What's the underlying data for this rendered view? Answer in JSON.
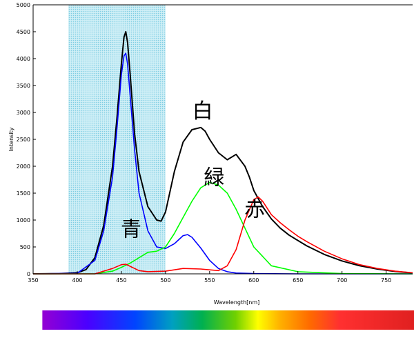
{
  "chart_data": {
    "type": "line",
    "title": "",
    "xlabel": "Wavelength[nm]",
    "ylabel": "Intensity",
    "xlim": [
      350,
      780
    ],
    "ylim": [
      0,
      5000
    ],
    "x_ticks": [
      350,
      400,
      450,
      500,
      550,
      600,
      650,
      700,
      750
    ],
    "y_ticks": [
      0,
      500,
      1000,
      1500,
      2000,
      2500,
      3000,
      3500,
      4000,
      4500,
      5000
    ],
    "grid": false,
    "legend": "none",
    "highlight_band": {
      "x": [
        390,
        500
      ],
      "color": "#aee3ef"
    },
    "spectrum_bar": {
      "x": [
        380,
        780
      ]
    },
    "series": [
      {
        "name": "白",
        "color": "#000000",
        "x": [
          350,
          380,
          400,
          410,
          420,
          430,
          440,
          445,
          450,
          453,
          455,
          457,
          460,
          465,
          470,
          480,
          490,
          495,
          500,
          510,
          520,
          530,
          540,
          545,
          550,
          560,
          570,
          580,
          590,
          595,
          600,
          610,
          620,
          630,
          640,
          650,
          660,
          680,
          700,
          720,
          740,
          760,
          780
        ],
        "y": [
          0,
          5,
          20,
          80,
          300,
          900,
          2000,
          2900,
          3900,
          4400,
          4500,
          4300,
          3700,
          2600,
          1900,
          1250,
          1000,
          980,
          1150,
          1900,
          2450,
          2680,
          2720,
          2650,
          2500,
          2250,
          2120,
          2220,
          2000,
          1800,
          1550,
          1250,
          1020,
          850,
          720,
          620,
          520,
          360,
          240,
          150,
          90,
          45,
          15
        ]
      },
      {
        "name": "青",
        "color": "#0000ff",
        "x": [
          350,
          400,
          420,
          430,
          440,
          445,
          450,
          453,
          455,
          457,
          460,
          465,
          470,
          480,
          490,
          500,
          510,
          520,
          525,
          530,
          540,
          550,
          560,
          570,
          580,
          600,
          650,
          700,
          780
        ],
        "y": [
          0,
          10,
          250,
          800,
          1800,
          2700,
          3700,
          4050,
          4100,
          3900,
          3300,
          2300,
          1500,
          800,
          500,
          470,
          560,
          710,
          730,
          680,
          480,
          250,
          100,
          40,
          15,
          5,
          0,
          0,
          0
        ]
      },
      {
        "name": "緑",
        "color": "#00ff00",
        "x": [
          350,
          420,
          440,
          450,
          460,
          470,
          480,
          490,
          500,
          510,
          520,
          530,
          540,
          550,
          560,
          570,
          580,
          590,
          600,
          620,
          650,
          700,
          780
        ],
        "y": [
          0,
          0,
          50,
          120,
          200,
          300,
          400,
          420,
          500,
          750,
          1050,
          1350,
          1600,
          1700,
          1650,
          1500,
          1200,
          850,
          500,
          150,
          40,
          5,
          0
        ]
      },
      {
        "name": "赤",
        "color": "#ff0000",
        "x": [
          350,
          420,
          440,
          450,
          455,
          460,
          470,
          480,
          500,
          520,
          540,
          560,
          570,
          580,
          590,
          600,
          605,
          610,
          620,
          630,
          640,
          650,
          660,
          680,
          700,
          720,
          740,
          760,
          780
        ],
        "y": [
          0,
          0,
          100,
          170,
          180,
          140,
          60,
          40,
          50,
          100,
          90,
          60,
          150,
          450,
          1000,
          1380,
          1430,
          1350,
          1100,
          950,
          820,
          700,
          600,
          420,
          280,
          170,
          100,
          50,
          20
        ]
      }
    ],
    "annotations": [
      {
        "text": "白",
        "x": 542,
        "y": 2900
      },
      {
        "text": "緑",
        "x": 555,
        "y": 1660
      },
      {
        "text": "赤",
        "x": 601,
        "y": 1070
      },
      {
        "text": "青",
        "x": 461,
        "y": 700
      }
    ]
  }
}
